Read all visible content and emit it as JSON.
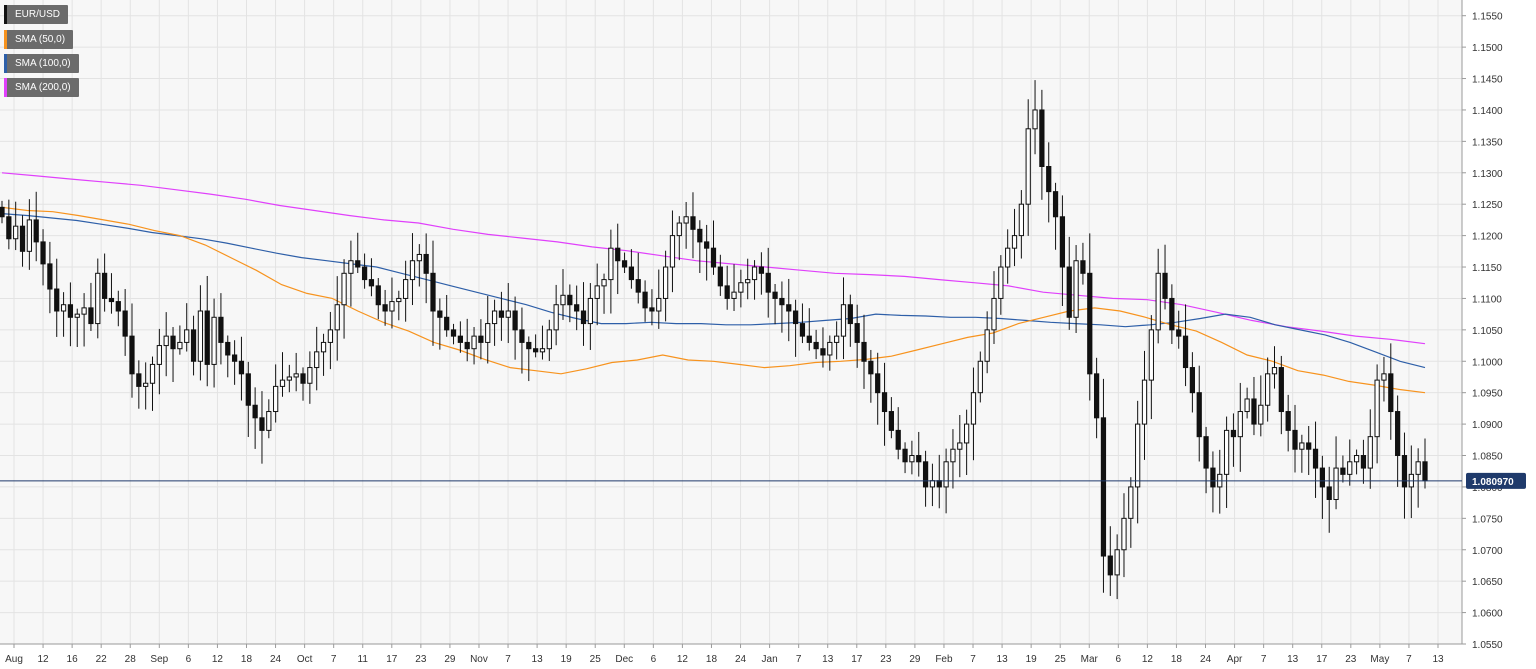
{
  "chart_data": {
    "type": "candlestick",
    "symbol": "EUR/USD",
    "current_price": 1.08097,
    "current_price_label": "1.080970",
    "ylim": [
      1.055,
      1.1575
    ],
    "yticks": [
      "1.1550",
      "1.1500",
      "1.1450",
      "1.1400",
      "1.1350",
      "1.1300",
      "1.1250",
      "1.1200",
      "1.1150",
      "1.1100",
      "1.1050",
      "1.1000",
      "1.0950",
      "1.0900",
      "1.0850",
      "1.0800",
      "1.0750",
      "1.0700",
      "1.0650",
      "1.0600",
      "1.0550"
    ],
    "xticks": [
      "Aug",
      "12",
      "16",
      "22",
      "28",
      "Sep",
      "6",
      "12",
      "18",
      "24",
      "Oct",
      "7",
      "11",
      "17",
      "23",
      "29",
      "Nov",
      "7",
      "13",
      "19",
      "25",
      "Dec",
      "6",
      "12",
      "18",
      "24",
      "Jan",
      "7",
      "13",
      "17",
      "23",
      "29",
      "Feb",
      "7",
      "13",
      "19",
      "25",
      "Mar",
      "6",
      "12",
      "18",
      "24",
      "Apr",
      "7",
      "13",
      "17",
      "23",
      "May",
      "7",
      "13"
    ],
    "legend": [
      {
        "label": "EUR/USD",
        "color": "#000000"
      },
      {
        "label": "SMA (50,0)",
        "color": "#f7931e"
      },
      {
        "label": "SMA (100,0)",
        "color": "#2e5fa8"
      },
      {
        "label": "SMA (200,0)",
        "color": "#e040fb"
      }
    ],
    "closes": [
      1.123,
      1.1195,
      1.1215,
      1.1175,
      1.1225,
      1.119,
      1.1155,
      1.1115,
      1.108,
      1.109,
      1.107,
      1.1075,
      1.1085,
      1.106,
      1.114,
      1.11,
      1.1095,
      1.108,
      1.104,
      1.098,
      1.096,
      1.0965,
      1.0995,
      1.1025,
      1.104,
      1.102,
      1.103,
      1.105,
      1.1,
      1.108,
      1.0995,
      1.107,
      1.103,
      1.101,
      1.1,
      1.098,
      1.093,
      1.091,
      1.089,
      1.092,
      1.096,
      1.097,
      1.0975,
      1.098,
      1.0965,
      1.099,
      1.1015,
      1.103,
      1.105,
      1.109,
      1.114,
      1.116,
      1.115,
      1.113,
      1.112,
      1.109,
      1.108,
      1.1095,
      1.11,
      1.113,
      1.116,
      1.117,
      1.114,
      1.108,
      1.107,
      1.105,
      1.104,
      1.103,
      1.102,
      1.104,
      1.103,
      1.106,
      1.108,
      1.107,
      1.108,
      1.105,
      1.103,
      1.102,
      1.1015,
      1.102,
      1.105,
      1.109,
      1.1105,
      1.109,
      1.108,
      1.106,
      1.11,
      1.112,
      1.113,
      1.118,
      1.116,
      1.115,
      1.113,
      1.111,
      1.1085,
      1.108,
      1.11,
      1.115,
      1.12,
      1.122,
      1.123,
      1.121,
      1.119,
      1.118,
      1.115,
      1.112,
      1.11,
      1.111,
      1.1125,
      1.113,
      1.115,
      1.114,
      1.111,
      1.11,
      1.109,
      1.108,
      1.106,
      1.104,
      1.103,
      1.102,
      1.101,
      1.103,
      1.104,
      1.109,
      1.106,
      1.103,
      1.1,
      1.098,
      1.095,
      1.092,
      1.089,
      1.086,
      1.084,
      1.085,
      1.084,
      1.08,
      1.081,
      1.08,
      1.084,
      1.086,
      1.087,
      1.09,
      1.095,
      1.1,
      1.105,
      1.11,
      1.115,
      1.118,
      1.12,
      1.125,
      1.137,
      1.14,
      1.131,
      1.127,
      1.123,
      1.115,
      1.107,
      1.116,
      1.114,
      1.098,
      1.091,
      1.069,
      1.066,
      1.07,
      1.075,
      1.08,
      1.09,
      1.097,
      1.105,
      1.114,
      1.11,
      1.105,
      1.104,
      1.099,
      1.095,
      1.088,
      1.083,
      1.08,
      1.082,
      1.089,
      1.088,
      1.092,
      1.094,
      1.09,
      1.093,
      1.098,
      1.099,
      1.092,
      1.089,
      1.086,
      1.087,
      1.086,
      1.083,
      1.08,
      1.078,
      1.083,
      1.082,
      1.084,
      1.085,
      1.083,
      1.088,
      1.097,
      1.098,
      1.092,
      1.085,
      1.08,
      1.082,
      1.084,
      1.081
    ],
    "sma50": [
      1.1245,
      1.124,
      1.1238,
      1.1232,
      1.1225,
      1.1218,
      1.1208,
      1.12,
      1.1185,
      1.1165,
      1.1145,
      1.1122,
      1.1108,
      1.11,
      1.108,
      1.1062,
      1.1048,
      1.103,
      1.1018,
      1.1003,
      1.099,
      1.0985,
      1.098,
      1.0988,
      1.0998,
      1.1002,
      1.101,
      1.1002,
      1.1,
      1.0995,
      1.099,
      1.0993,
      1.0998,
      1.1,
      1.1003,
      1.1008,
      1.1018,
      1.1028,
      1.1038,
      1.1045,
      1.106,
      1.107,
      1.108,
      1.1085,
      1.108,
      1.107,
      1.1058,
      1.1048,
      1.103,
      1.101,
      1.1,
      1.0985,
      1.0978,
      1.0968,
      1.0962,
      1.0955,
      1.095
    ],
    "sma100": [
      1.1235,
      1.1232,
      1.1228,
      1.1224,
      1.1218,
      1.1212,
      1.1205,
      1.12,
      1.1195,
      1.1188,
      1.118,
      1.1172,
      1.1165,
      1.116,
      1.1155,
      1.115,
      1.114,
      1.113,
      1.112,
      1.111,
      1.11,
      1.109,
      1.1078,
      1.1068,
      1.106,
      1.106,
      1.1062,
      1.106,
      1.106,
      1.1058,
      1.1058,
      1.106,
      1.1062,
      1.1065,
      1.1068,
      1.1075,
      1.1073,
      1.1072,
      1.107,
      1.107,
      1.1068,
      1.1065,
      1.1062,
      1.106,
      1.1058,
      1.1055,
      1.1058,
      1.1062,
      1.1068,
      1.1075,
      1.107,
      1.1058,
      1.105,
      1.1042,
      1.103,
      1.1015,
      1.1,
      1.099
    ],
    "sma200": [
      1.13,
      1.1295,
      1.129,
      1.1285,
      1.128,
      1.1273,
      1.1266,
      1.1258,
      1.1248,
      1.124,
      1.1232,
      1.1225,
      1.122,
      1.121,
      1.1202,
      1.1196,
      1.119,
      1.1182,
      1.1176,
      1.1168,
      1.116,
      1.1155,
      1.115,
      1.1145,
      1.114,
      1.1138,
      1.1135,
      1.113,
      1.1125,
      1.112,
      1.111,
      1.1105,
      1.11,
      1.1098,
      1.109,
      1.1078,
      1.1065,
      1.1055,
      1.1048,
      1.104,
      1.1035,
      1.1028
    ]
  }
}
